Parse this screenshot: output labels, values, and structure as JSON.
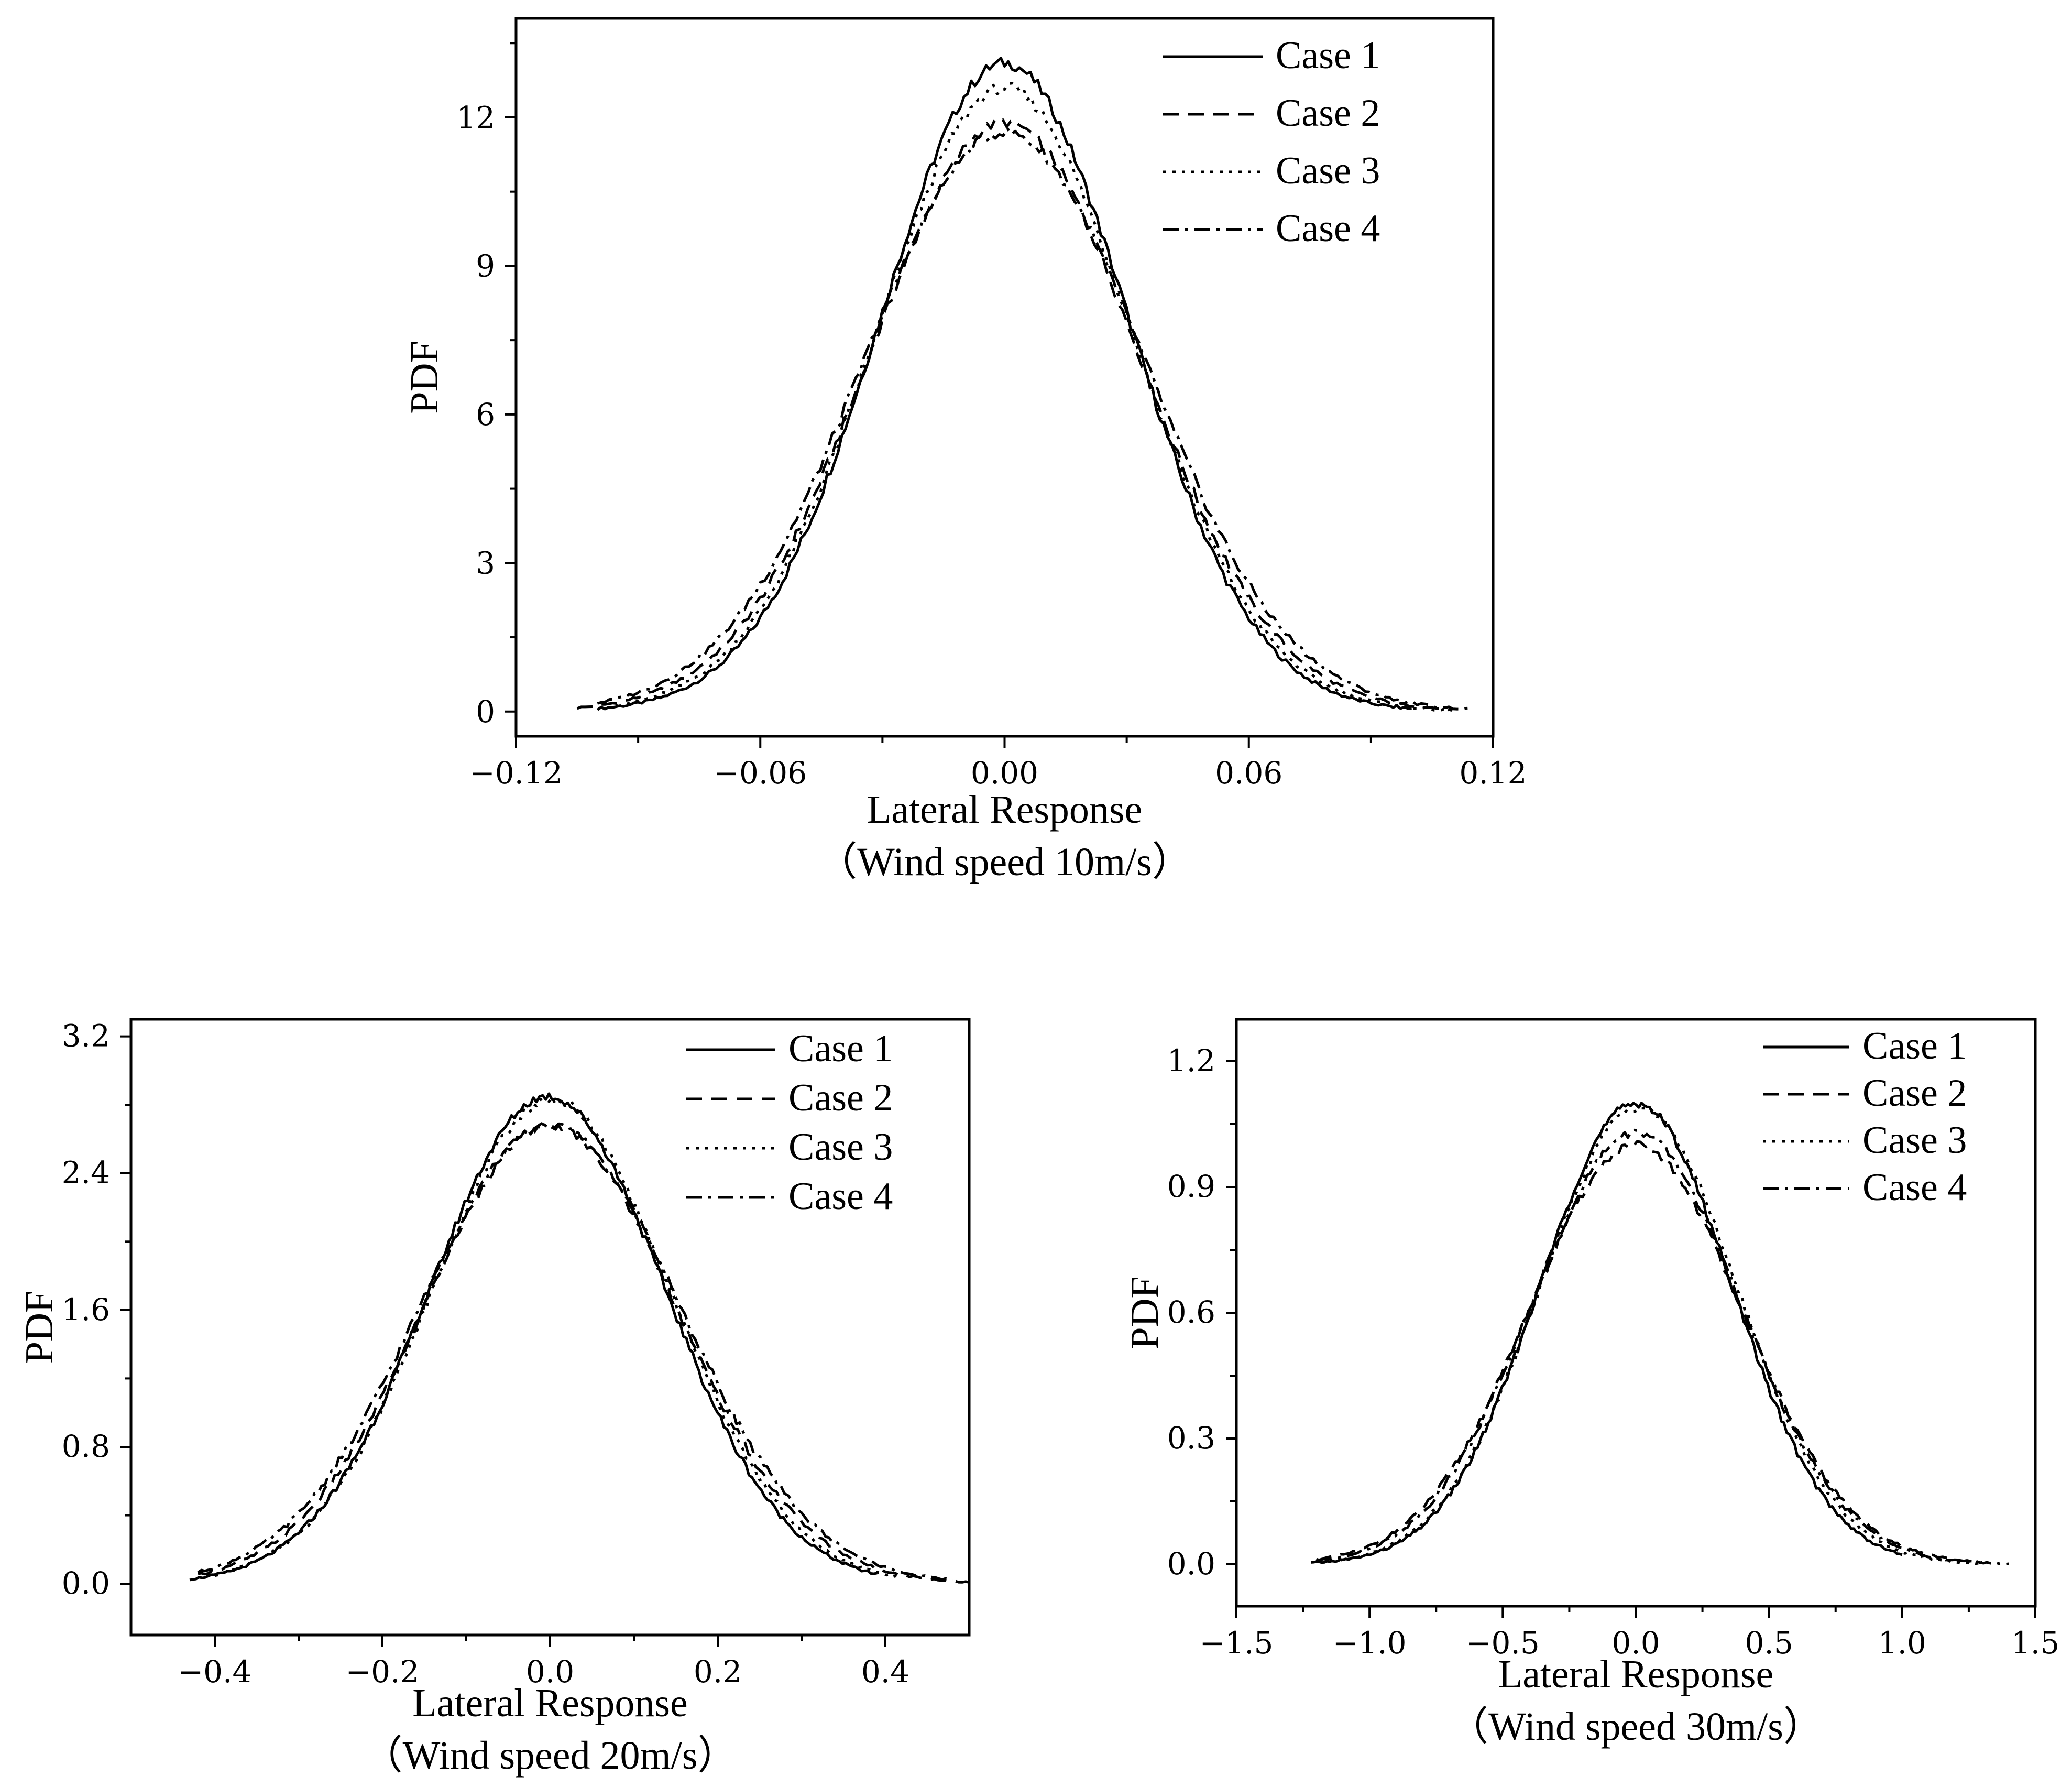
{
  "chart_data": [
    {
      "type": "line",
      "id": "p10",
      "xlabel": "Lateral Response",
      "caption": "（Wind speed 10m/s）",
      "ylabel": "PDF",
      "xlim": [
        -0.12,
        0.12
      ],
      "ylim": [
        -0.5,
        14.0
      ],
      "xticks": [
        -0.12,
        -0.06,
        0.0,
        0.06,
        0.12
      ],
      "xtick_labels": [
        "−0.12",
        "−0.06",
        "0.00",
        "0.06",
        "0.12"
      ],
      "yticks": [
        0,
        3,
        6,
        9,
        12
      ],
      "ytick_labels": [
        "0",
        "3",
        "6",
        "9",
        "12"
      ],
      "legend_position": "top-right",
      "series": [
        {
          "name": "Case 1",
          "style": "solid",
          "sigma": 0.0305,
          "peak": 13.1,
          "skew": 0.0,
          "xmin": -0.1,
          "xmax": 0.1
        },
        {
          "name": "Case 2",
          "style": "dashed",
          "sigma": 0.033,
          "peak": 11.9,
          "skew": 0.0,
          "xmin": -0.105,
          "xmax": 0.11
        },
        {
          "name": "Case 3",
          "style": "dotted",
          "sigma": 0.0315,
          "peak": 12.6,
          "skew": 0.0,
          "xmin": -0.095,
          "xmax": 0.11
        },
        {
          "name": "Case 4",
          "style": "dashdot",
          "sigma": 0.0345,
          "peak": 11.7,
          "skew": 0.0,
          "xmin": -0.1,
          "xmax": 0.115
        }
      ]
    },
    {
      "type": "line",
      "id": "p20",
      "xlabel": "Lateral Response",
      "caption": "（Wind speed 20m/s）",
      "ylabel": "PDF",
      "xlim": [
        -0.5,
        0.5
      ],
      "ylim": [
        -0.3,
        3.3
      ],
      "xticks": [
        -0.4,
        -0.2,
        0.0,
        0.2,
        0.4
      ],
      "xtick_labels": [
        "−0.4",
        "−0.2",
        "0.0",
        "0.2",
        "0.4"
      ],
      "yticks": [
        0.0,
        0.8,
        1.6,
        2.4,
        3.2
      ],
      "ytick_labels": [
        "0.0",
        "0.8",
        "1.6",
        "2.4",
        "3.2"
      ],
      "legend_position": "top-right",
      "series": [
        {
          "name": "Case 1",
          "style": "solid",
          "sigma": 0.14,
          "peak": 2.85,
          "skew": -0.02,
          "xmin": -0.43,
          "xmax": 0.39
        },
        {
          "name": "Case 2",
          "style": "dashed",
          "sigma": 0.15,
          "peak": 2.68,
          "skew": 0.0,
          "xmin": -0.42,
          "xmax": 0.5
        },
        {
          "name": "Case 3",
          "style": "dotted",
          "sigma": 0.142,
          "peak": 2.83,
          "skew": 0.01,
          "xmin": -0.4,
          "xmax": 0.42
        },
        {
          "name": "Case 4",
          "style": "dashdot",
          "sigma": 0.155,
          "peak": 2.68,
          "skew": 0.0,
          "xmin": -0.42,
          "xmax": 0.48
        }
      ]
    },
    {
      "type": "line",
      "id": "p30",
      "xlabel": "Lateral Response",
      "caption": "（Wind speed 30m/s）",
      "ylabel": "PDF",
      "xlim": [
        -1.5,
        1.5
      ],
      "ylim": [
        -0.1,
        1.3
      ],
      "xticks": [
        -1.5,
        -1.0,
        -0.5,
        0.0,
        0.5,
        1.0,
        1.5
      ],
      "xtick_labels": [
        "−1.5",
        "−1.0",
        "−0.5",
        "0.0",
        "0.5",
        "1.0",
        "1.5"
      ],
      "yticks": [
        0.0,
        0.3,
        0.6,
        0.9,
        1.2
      ],
      "ytick_labels": [
        "0.0",
        "0.3",
        "0.6",
        "0.9",
        "1.2"
      ],
      "legend_position": "top-right",
      "series": [
        {
          "name": "Case 1",
          "style": "solid",
          "sigma": 0.36,
          "peak": 1.1,
          "skew": 0.0,
          "xmin": -1.22,
          "xmax": 1.0
        },
        {
          "name": "Case 2",
          "style": "dashed",
          "sigma": 0.4,
          "peak": 1.0,
          "skew": 0.0,
          "xmin": -1.2,
          "xmax": 1.3
        },
        {
          "name": "Case 3",
          "style": "dotted",
          "sigma": 0.37,
          "peak": 1.09,
          "skew": 0.03,
          "xmin": -1.15,
          "xmax": 1.3
        },
        {
          "name": "Case 4",
          "style": "dashdot",
          "sigma": 0.39,
          "peak": 1.03,
          "skew": 0.0,
          "xmin": -1.2,
          "xmax": 1.4
        }
      ]
    }
  ]
}
